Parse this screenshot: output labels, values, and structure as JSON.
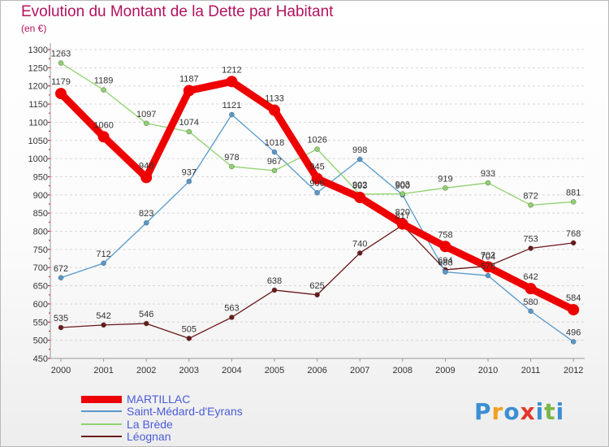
{
  "title": "Evolution du Montant de la Dette par Habitant",
  "unit": "(en €)",
  "brand": {
    "text": "Proxiti",
    "letters": [
      "P",
      "r",
      "o",
      "x",
      "i",
      "t",
      "i"
    ],
    "colors": [
      "#3b8fd3",
      "#f0a020",
      "#3b8fd3",
      "#e2382c",
      "#3b8fd3",
      "#7ab648",
      "#3b8fd3"
    ]
  },
  "chart_data": {
    "type": "line",
    "title": "Evolution du Montant de la Dette par Habitant",
    "ylabel": "(en €)",
    "xlabel": "",
    "x": [
      "2000",
      "2001",
      "2002",
      "2003",
      "2004",
      "2005",
      "2006",
      "2007",
      "2008",
      "2009",
      "2010",
      "2011",
      "2012"
    ],
    "ylim": [
      450,
      1300
    ],
    "yticks": [
      450,
      500,
      550,
      600,
      650,
      700,
      750,
      800,
      850,
      900,
      950,
      1000,
      1050,
      1100,
      1150,
      1200,
      1250,
      1300
    ],
    "grid": "horizontal dashed",
    "legend_position": "bottom-left",
    "series": [
      {
        "name": "MARTILLAC",
        "color": "#ee0000",
        "values": [
          1179,
          1060,
          948,
          1187,
          1212,
          1133,
          945,
          893,
          820,
          758,
          702,
          642,
          584
        ]
      },
      {
        "name": "Saint-Médard-d'Eyrans",
        "color": "#5799cc",
        "values": [
          672,
          712,
          823,
          937,
          1121,
          1018,
          906,
          998,
          900,
          688,
          678,
          580,
          496
        ]
      },
      {
        "name": "La Brède",
        "color": "#8fd26e",
        "values": [
          1263,
          1189,
          1097,
          1074,
          978,
          967,
          1026,
          902,
          903,
          919,
          933,
          872,
          881
        ]
      },
      {
        "name": "Léognan",
        "color": "#6a1a1a",
        "values": [
          535,
          542,
          546,
          505,
          563,
          638,
          625,
          740,
          817,
          694,
          704,
          753,
          768
        ]
      }
    ]
  }
}
